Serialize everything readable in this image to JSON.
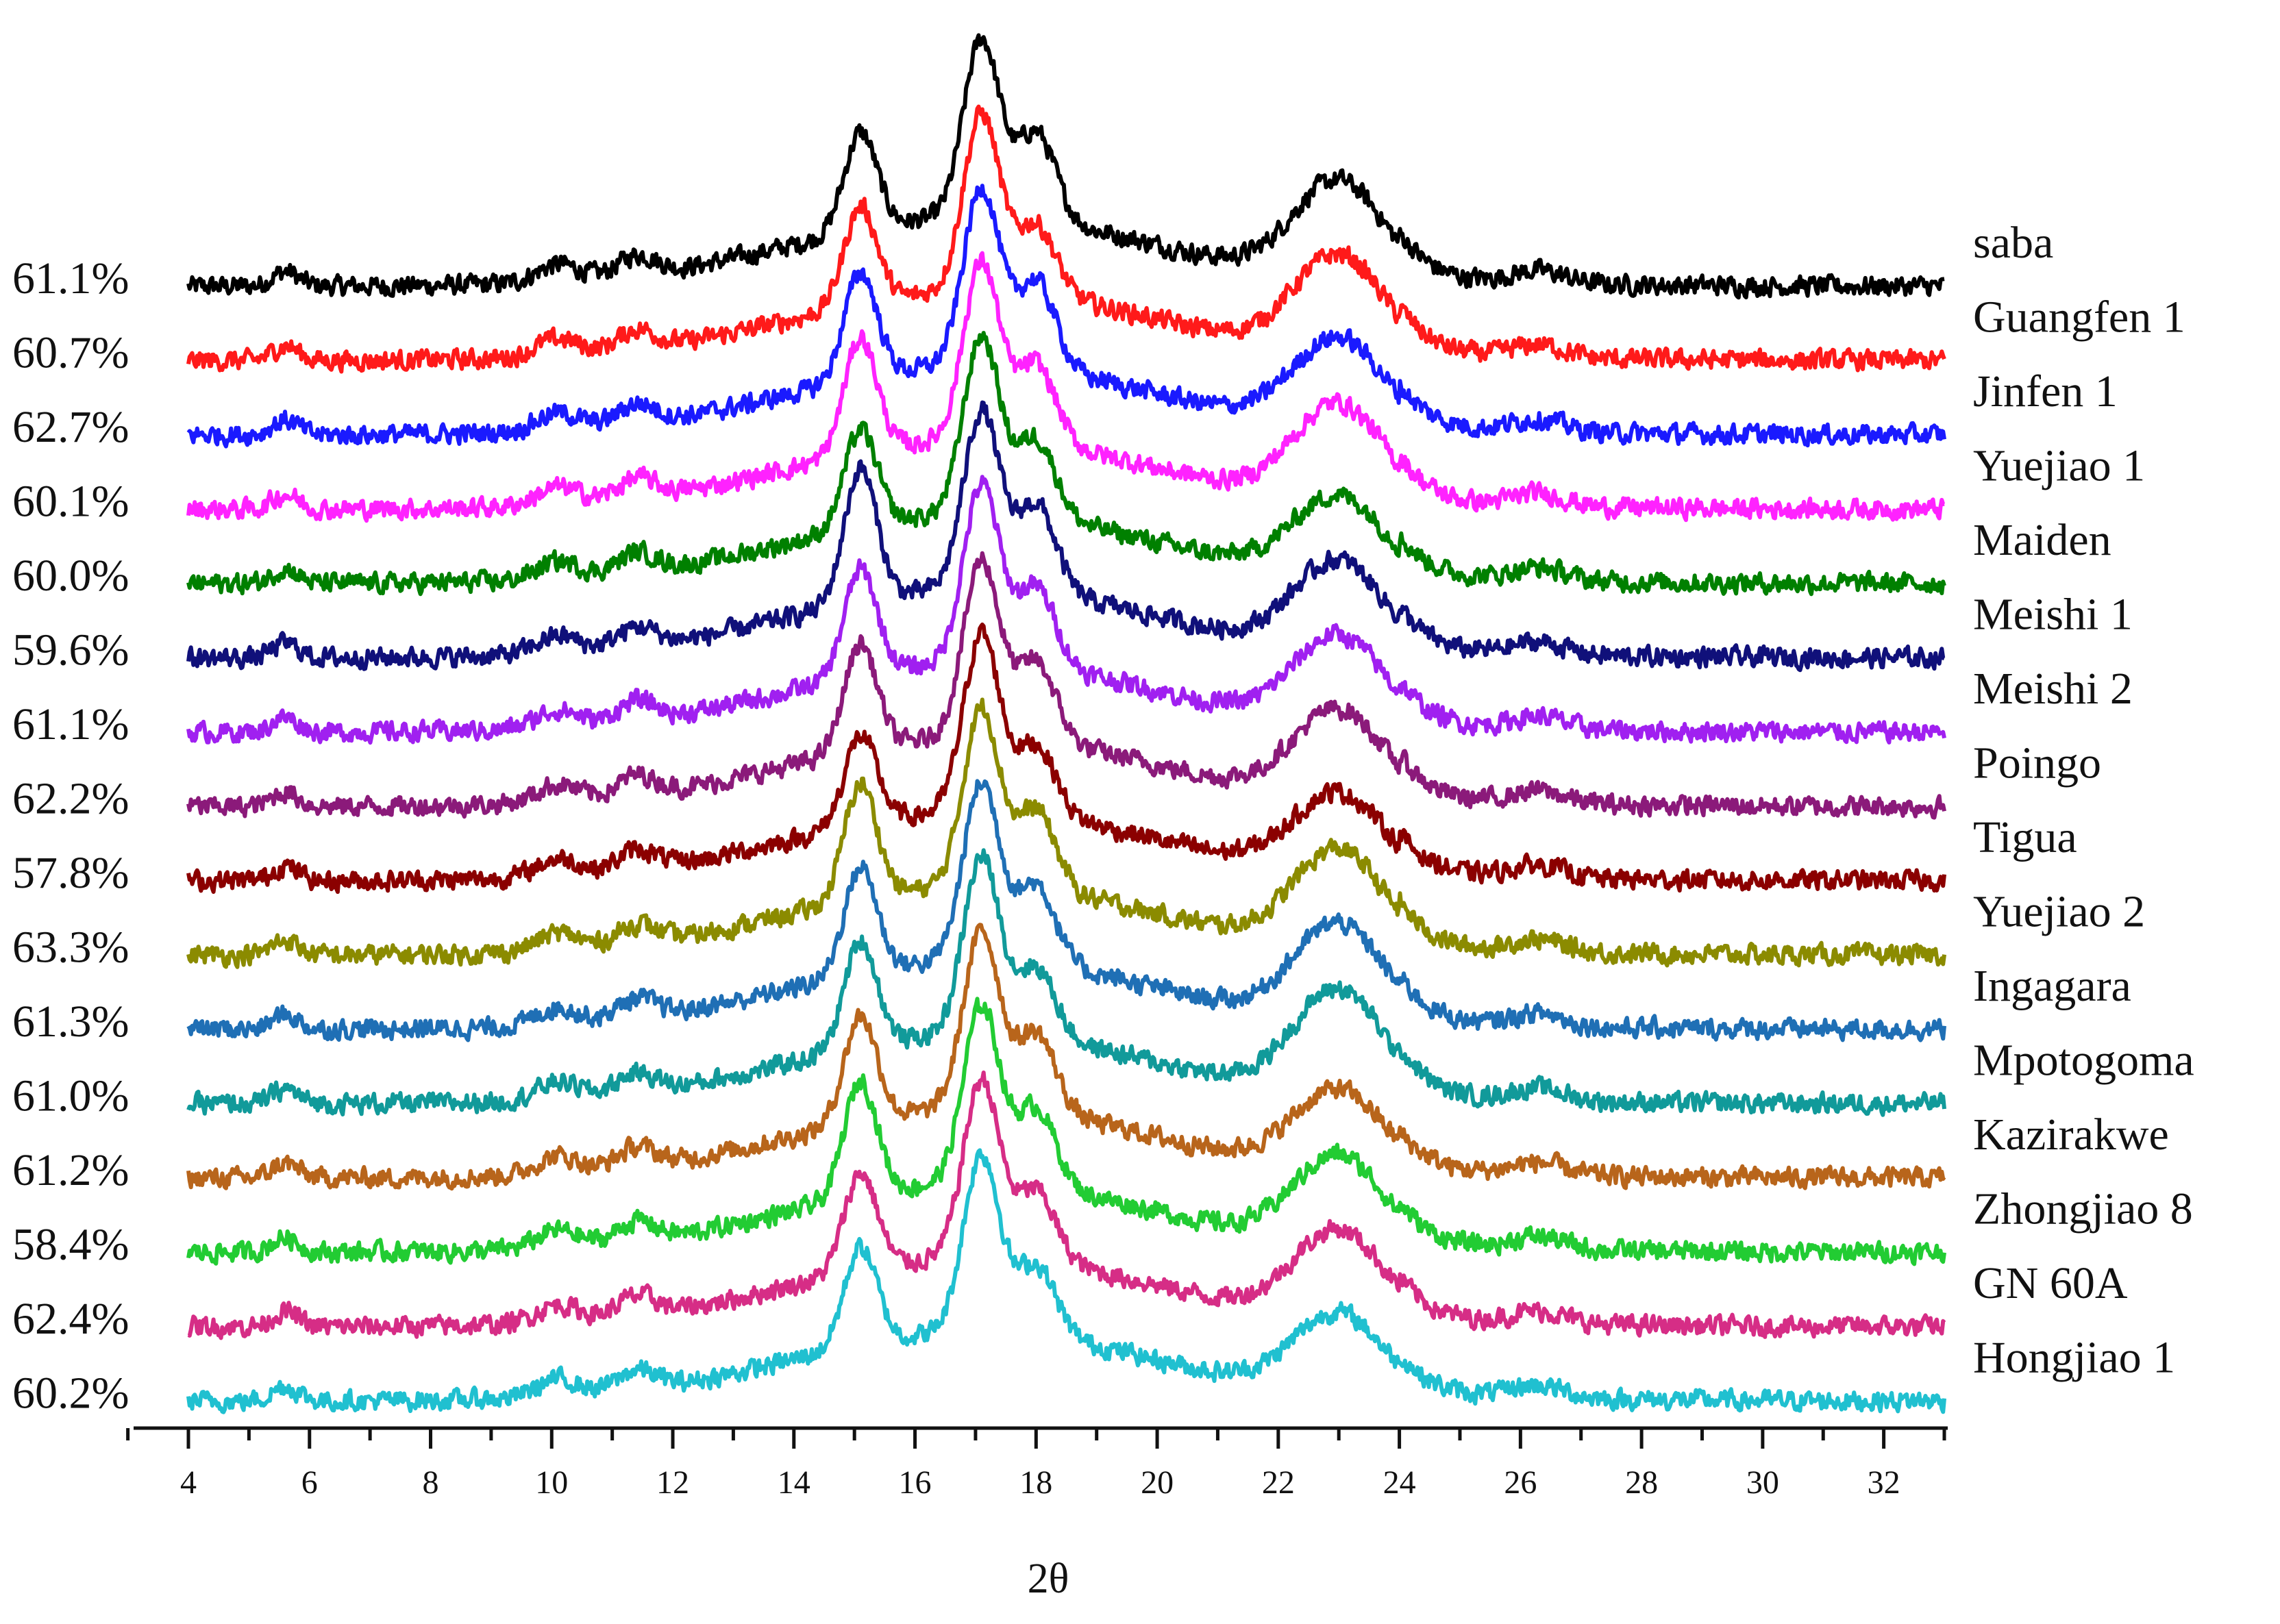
{
  "chart_data": {
    "type": "line",
    "title": "",
    "xlabel": "2θ",
    "ylabel": "",
    "xlim": [
      4,
      33
    ],
    "x_ticks": [
      "4",
      "6",
      "8",
      "10",
      "12",
      "14",
      "16",
      "18",
      "20",
      "22",
      "24",
      "26",
      "28",
      "30",
      "32"
    ],
    "grid": false,
    "legend": "series labels at right end of each trace; crystallinity values at left",
    "peaks_2theta": [
      15.1,
      17.1,
      18.0,
      23.0
    ],
    "series": [
      {
        "name": "saba",
        "crystallinity": "61.1%",
        "color": "#000000",
        "peaks": [
          0.55,
          1.0,
          0.5,
          0.55
        ]
      },
      {
        "name": "Guangfen  1",
        "crystallinity": "60.7%",
        "color": "#ff1a1a",
        "peaks": [
          0.55,
          1.0,
          0.4,
          0.55
        ]
      },
      {
        "name": "Jinfen 1",
        "crystallinity": "62.7%",
        "color": "#1a1aff",
        "peaks": [
          0.6,
          1.0,
          0.5,
          0.5
        ]
      },
      {
        "name": "Yuejiao 1",
        "crystallinity": "60.1%",
        "color": "#ff22ff",
        "peaks": [
          0.65,
          1.0,
          0.45,
          0.55
        ]
      },
      {
        "name": "Maiden",
        "crystallinity": "60.0%",
        "color": "#008000",
        "peaks": [
          0.55,
          1.0,
          0.45,
          0.45
        ]
      },
      {
        "name": "Meishi 1",
        "crystallinity": "59.6%",
        "color": "#10107a",
        "peaks": [
          0.75,
          1.0,
          0.5,
          0.5
        ]
      },
      {
        "name": "Meishi 2",
        "crystallinity": "61.1%",
        "color": "#a020f0",
        "peaks": [
          0.6,
          1.0,
          0.45,
          0.5
        ]
      },
      {
        "name": "Poingo",
        "crystallinity": "62.2%",
        "color": "#8b1a7a",
        "peaks": [
          0.6,
          1.0,
          0.45,
          0.5
        ]
      },
      {
        "name": "Tigua",
        "crystallinity": "57.8%",
        "color": "#8b0000",
        "peaks": [
          0.5,
          1.0,
          0.4,
          0.45
        ]
      },
      {
        "name": "Yuejiao 2",
        "crystallinity": "63.3%",
        "color": "#8b8b00",
        "peaks": [
          0.65,
          1.0,
          0.45,
          0.55
        ]
      },
      {
        "name": "Ingagara",
        "crystallinity": "61.3%",
        "color": "#1f6fb5",
        "peaks": [
          0.6,
          1.0,
          0.45,
          0.55
        ]
      },
      {
        "name": "Mpotogoma",
        "crystallinity": "61.0%",
        "color": "#119a9a",
        "peaks": [
          0.6,
          1.0,
          0.4,
          0.6
        ]
      },
      {
        "name": "Kazirakwe",
        "crystallinity": "61.2%",
        "color": "#b8651b",
        "peaks": [
          0.6,
          1.0,
          0.45,
          0.45
        ]
      },
      {
        "name": "Zhongjiao 8",
        "crystallinity": "58.4%",
        "color": "#22cc33",
        "peaks": [
          0.65,
          1.0,
          0.45,
          0.5
        ]
      },
      {
        "name": "GN 60A",
        "crystallinity": "62.4%",
        "color": "#d62d86",
        "peaks": [
          0.55,
          1.0,
          0.4,
          0.5
        ]
      },
      {
        "name": "Hongjiao 1",
        "crystallinity": "60.2%",
        "color": "#20c0d0",
        "peaks": [
          0.55,
          1.0,
          0.4,
          0.45
        ]
      }
    ]
  }
}
